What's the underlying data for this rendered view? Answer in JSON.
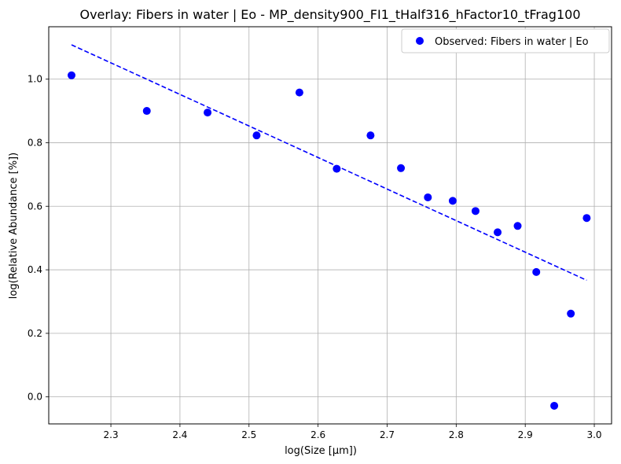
{
  "chart_data": {
    "type": "scatter",
    "title": "Overlay: Fibers in water | Eo - MP_density900_FI1_tHalf316_hFactor10_tFrag100",
    "xlabel": "log(Size [μm])",
    "ylabel": "log(Relative Abundance [%])",
    "xlim": [
      2.21,
      3.025
    ],
    "ylim": [
      -0.085,
      1.165
    ],
    "xticks": [
      2.3,
      2.4,
      2.5,
      2.6,
      2.7,
      2.8,
      2.9,
      3.0
    ],
    "xtick_labels": [
      "2.3",
      "2.4",
      "2.5",
      "2.6",
      "2.7",
      "2.8",
      "2.9",
      "3.0"
    ],
    "yticks": [
      0.0,
      0.2,
      0.4,
      0.6,
      0.8,
      1.0
    ],
    "ytick_labels": [
      "0.0",
      "0.2",
      "0.4",
      "0.6",
      "0.8",
      "1.0"
    ],
    "grid": true,
    "legend_position": "top-right",
    "legend": [
      "Observed: Fibers in water | Eo"
    ],
    "series": [
      {
        "name": "Observed: Fibers in water | Eo",
        "type": "scatter",
        "color": "#0000ff",
        "x": [
          2.243,
          2.352,
          2.44,
          2.511,
          2.573,
          2.627,
          2.676,
          2.72,
          2.759,
          2.795,
          2.828,
          2.86,
          2.889,
          2.916,
          2.942,
          2.966,
          2.989
        ],
        "y": [
          1.012,
          0.9,
          0.895,
          0.823,
          0.958,
          0.718,
          0.823,
          0.72,
          0.628,
          0.617,
          0.585,
          0.518,
          0.538,
          0.393,
          -0.028,
          0.262,
          0.563
        ]
      },
      {
        "name": "fit",
        "type": "line",
        "style": "dashed",
        "color": "#0000ff",
        "x": [
          2.243,
          2.989
        ],
        "y": [
          1.108,
          0.367
        ]
      }
    ]
  }
}
